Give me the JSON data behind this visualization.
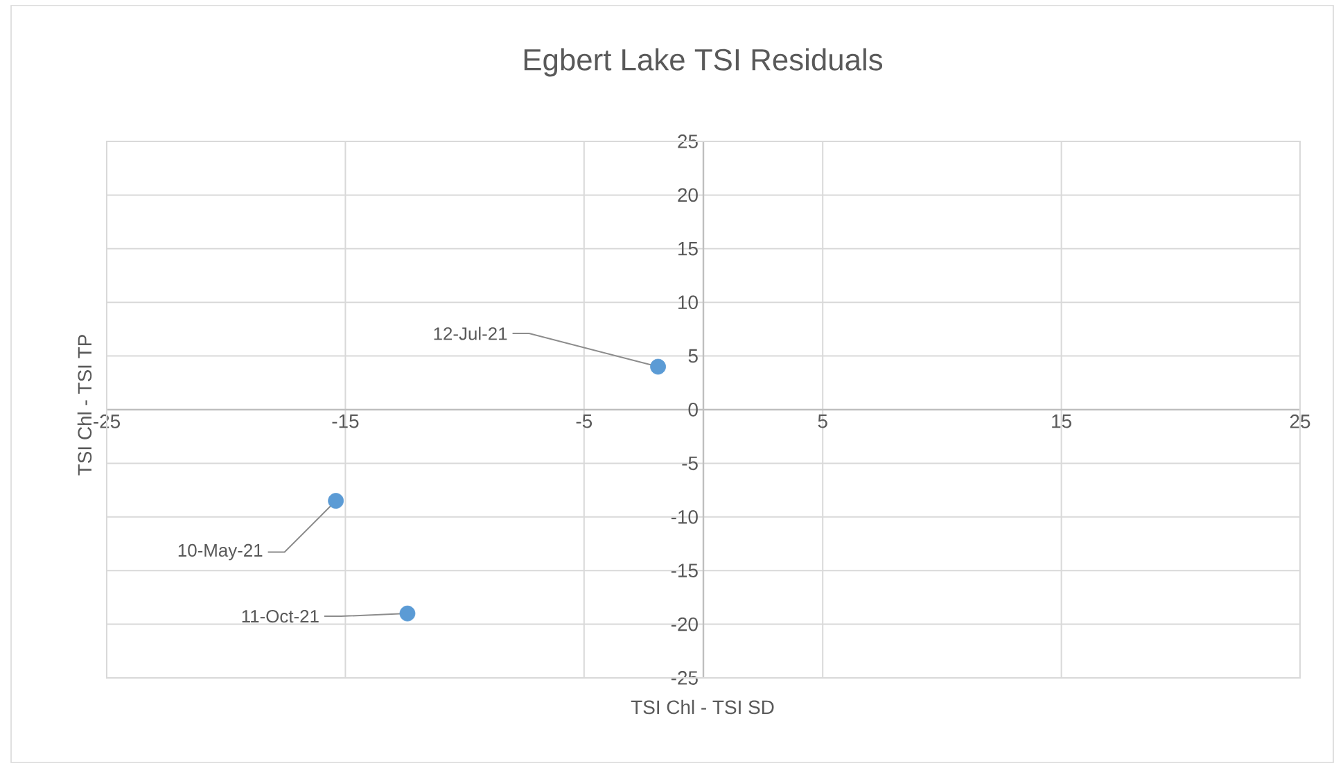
{
  "chart_data": {
    "type": "scatter",
    "title": "Egbert Lake TSI Residuals",
    "xlabel": "TSI Chl - TSI SD",
    "ylabel": "TSI Chl - TSI TP",
    "x": [
      -15.4,
      -1.9,
      -12.4
    ],
    "values": [
      -8.5,
      4.0,
      -19.0
    ],
    "color": "#5b9bd5",
    "xlim": [
      -25,
      25
    ],
    "xticks": [
      -25,
      -15,
      -5,
      5,
      15,
      25
    ],
    "ylim": [
      -25,
      25
    ],
    "yticks": [
      -25,
      -20,
      -15,
      -10,
      -5,
      0,
      5,
      10,
      15,
      20,
      25
    ],
    "grid": true,
    "annotations": [
      {
        "text": "10-May-21",
        "x": -15.4,
        "y": -8.5
      },
      {
        "text": "12-Jul-21",
        "x": -1.9,
        "y": 4.0
      },
      {
        "text": "11-Oct-21",
        "x": -12.4,
        "y": -19.0
      }
    ]
  }
}
